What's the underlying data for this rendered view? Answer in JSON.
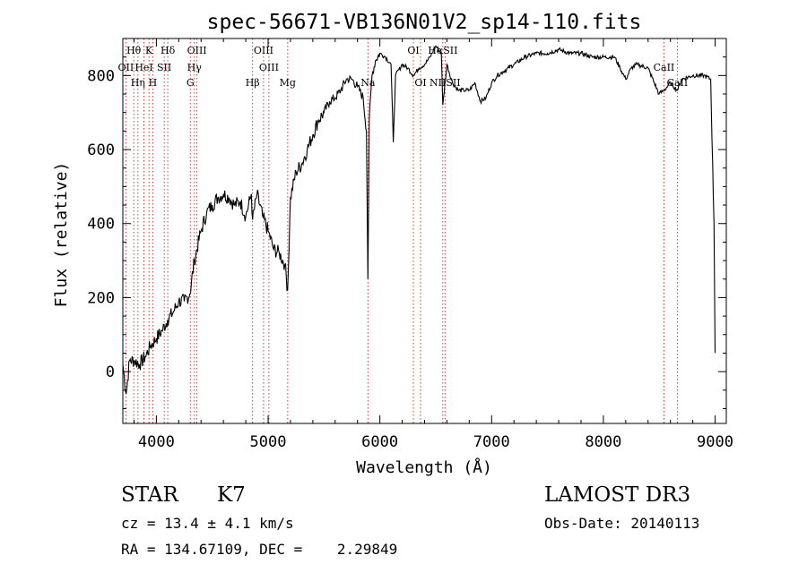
{
  "chart_data": {
    "type": "line",
    "title": "spec-56671-VB136N01V2_sp14-110.fits",
    "xlabel": "Wavelength (Å)",
    "ylabel": "Flux (relative)",
    "xlim": [
      3700,
      9100
    ],
    "ylim": [
      -140,
      900
    ],
    "x_ticks": [
      4000,
      5000,
      6000,
      7000,
      8000,
      9000
    ],
    "y_ticks": [
      0,
      200,
      400,
      600,
      800
    ],
    "x_tick_labels": [
      "4000",
      "5000",
      "6000",
      "7000",
      "8000",
      "9000"
    ],
    "y_tick_labels": [
      "0",
      "200",
      "400",
      "600",
      "800"
    ],
    "series": [
      {
        "name": "flux",
        "x": [
          3700,
          3730,
          3760,
          3800,
          3850,
          3900,
          3950,
          4000,
          4050,
          4100,
          4150,
          4200,
          4250,
          4300,
          4340,
          4400,
          4450,
          4500,
          4550,
          4600,
          4650,
          4700,
          4750,
          4800,
          4850,
          4861,
          4900,
          4950,
          5000,
          5050,
          5100,
          5150,
          5175,
          5200,
          5250,
          5300,
          5350,
          5400,
          5450,
          5500,
          5550,
          5600,
          5650,
          5700,
          5750,
          5800,
          5850,
          5880,
          5893,
          5905,
          5930,
          5960,
          6000,
          6050,
          6100,
          6120,
          6140,
          6200,
          6250,
          6300,
          6350,
          6400,
          6450,
          6500,
          6550,
          6563,
          6600,
          6650,
          6700,
          6750,
          6800,
          6850,
          6900,
          6950,
          7000,
          7050,
          7100,
          7200,
          7300,
          7400,
          7500,
          7600,
          7700,
          7800,
          7900,
          8000,
          8100,
          8150,
          8200,
          8250,
          8300,
          8400,
          8498,
          8542,
          8600,
          8662,
          8700,
          8800,
          8900,
          8960,
          8990,
          9000
        ],
        "y": [
          20,
          -60,
          30,
          30,
          20,
          40,
          70,
          90,
          110,
          140,
          160,
          190,
          190,
          210,
          300,
          380,
          430,
          450,
          470,
          480,
          470,
          450,
          460,
          420,
          480,
          410,
          480,
          420,
          380,
          330,
          320,
          290,
          220,
          470,
          540,
          560,
          600,
          640,
          680,
          700,
          730,
          740,
          760,
          790,
          790,
          770,
          740,
          650,
          250,
          680,
          800,
          840,
          860,
          850,
          830,
          620,
          800,
          830,
          820,
          800,
          820,
          830,
          850,
          880,
          860,
          720,
          830,
          780,
          760,
          760,
          760,
          780,
          730,
          740,
          780,
          800,
          810,
          830,
          850,
          860,
          860,
          870,
          860,
          860,
          850,
          850,
          850,
          820,
          790,
          820,
          830,
          820,
          750,
          760,
          780,
          760,
          790,
          800,
          800,
          790,
          400,
          50
        ]
      }
    ],
    "line_markers": [
      {
        "name": "Hθ",
        "x": 3798,
        "row": 1
      },
      {
        "name": "K",
        "x": 3934,
        "row": 1
      },
      {
        "name": "Hδ",
        "x": 4102,
        "row": 1
      },
      {
        "name": "OIII",
        "x": 4363,
        "row": 1
      },
      {
        "name": "OIII",
        "x": 4959,
        "row": 1
      },
      {
        "name": "OI",
        "x": 6300,
        "row": 1
      },
      {
        "name": "HαSII",
        "x": 6563,
        "row": 1
      },
      {
        "name": "OII",
        "x": 3727,
        "row": 2
      },
      {
        "name": "HeI",
        "x": 3889,
        "row": 2
      },
      {
        "name": "SII",
        "x": 4070,
        "row": 2
      },
      {
        "name": "Hγ",
        "x": 4340,
        "row": 2
      },
      {
        "name": "OIII",
        "x": 5007,
        "row": 2
      },
      {
        "name": "CaII",
        "x": 8542,
        "row": 2
      },
      {
        "name": "Hη",
        "x": 3835,
        "row": 3
      },
      {
        "name": "H",
        "x": 3968,
        "row": 3
      },
      {
        "name": "G",
        "x": 4304,
        "row": 3
      },
      {
        "name": "Hβ",
        "x": 4861,
        "row": 3
      },
      {
        "name": "Mg",
        "x": 5175,
        "row": 3
      },
      {
        "name": "Na",
        "x": 5893,
        "row": 3
      },
      {
        "name": "OI",
        "x": 6364,
        "row": 3
      },
      {
        "name": "NIISII",
        "x": 6583,
        "row": 3
      },
      {
        "name": "CaII",
        "x": 8662,
        "row": 3
      }
    ]
  },
  "info": {
    "object_class": "STAR",
    "subclass": "K7",
    "survey": "LAMOST DR3",
    "redshift": "cz = 13.4 ± 4.1 km/s",
    "obs_date": "Obs-Date: 20140113",
    "coords": "RA = 134.67109, DEC =    2.29849"
  }
}
